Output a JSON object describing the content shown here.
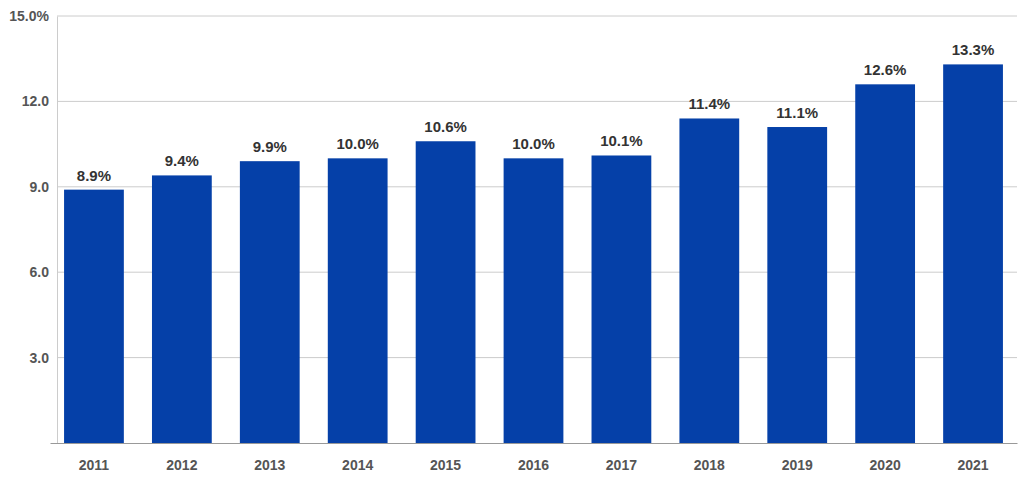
{
  "chart_data": {
    "type": "bar",
    "categories": [
      "2011",
      "2012",
      "2013",
      "2014",
      "2015",
      "2016",
      "2017",
      "2018",
      "2019",
      "2020",
      "2021"
    ],
    "values": [
      8.9,
      9.4,
      9.9,
      10.0,
      10.6,
      10.0,
      10.1,
      11.4,
      11.1,
      12.6,
      13.3
    ],
    "value_labels": [
      "8.9%",
      "9.4%",
      "9.9%",
      "10.0%",
      "10.6%",
      "10.0%",
      "10.1%",
      "11.4%",
      "11.1%",
      "12.6%",
      "13.3%"
    ],
    "color": "#0540a8",
    "ylim": [
      0,
      15
    ],
    "yticks": [
      {
        "value": 3,
        "label": "3.0"
      },
      {
        "value": 6,
        "label": "6.0"
      },
      {
        "value": 9,
        "label": "9.0"
      },
      {
        "value": 12,
        "label": "12.0"
      },
      {
        "value": 15,
        "label": "15.0%"
      }
    ],
    "grid": true,
    "data_labels": true
  }
}
